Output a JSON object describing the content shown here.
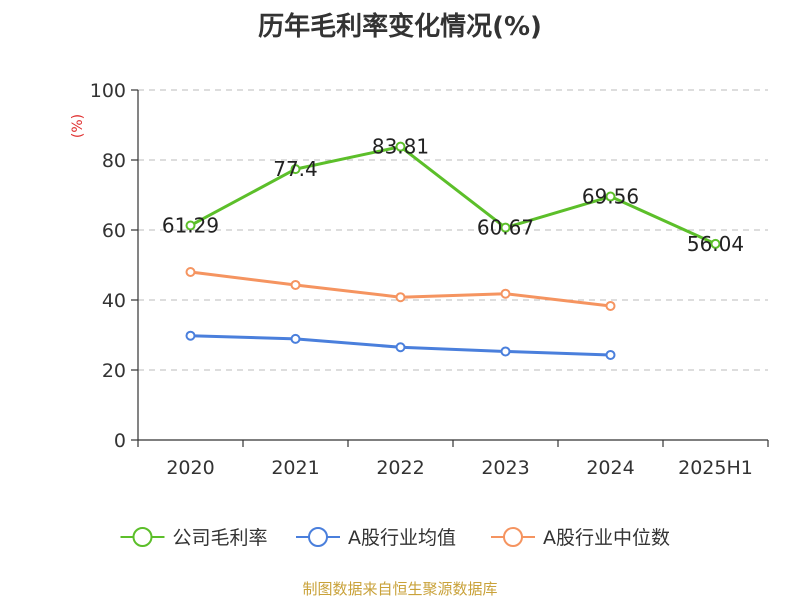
{
  "title": "历年毛利率变化情况(%)",
  "source": "制图数据来自恒生聚源数据库",
  "chart_data": {
    "type": "line",
    "unit_label": "(%)",
    "categories": [
      "2020",
      "2021",
      "2022",
      "2023",
      "2024",
      "2025H1"
    ],
    "ylim": [
      0,
      100
    ],
    "yticks": [
      0,
      20,
      40,
      60,
      80,
      100
    ],
    "grid": true,
    "legend_position": "bottom",
    "series": [
      {
        "name": "公司毛利率",
        "color": "#5cbf2a",
        "show_labels": true,
        "values": [
          61.29,
          77.4,
          83.81,
          60.67,
          69.56,
          56.04
        ],
        "labels": [
          "61.29",
          "77.4",
          "83.81",
          "60.67",
          "69.56",
          "56.04"
        ]
      },
      {
        "name": "A股行业均值",
        "color": "#4a7fdc",
        "show_labels": false,
        "values": [
          29.8,
          28.9,
          26.5,
          25.3,
          24.3,
          null
        ]
      },
      {
        "name": "A股行业中位数",
        "color": "#f59460",
        "show_labels": false,
        "values": [
          48.0,
          44.3,
          40.8,
          41.8,
          38.3,
          null
        ]
      }
    ]
  }
}
